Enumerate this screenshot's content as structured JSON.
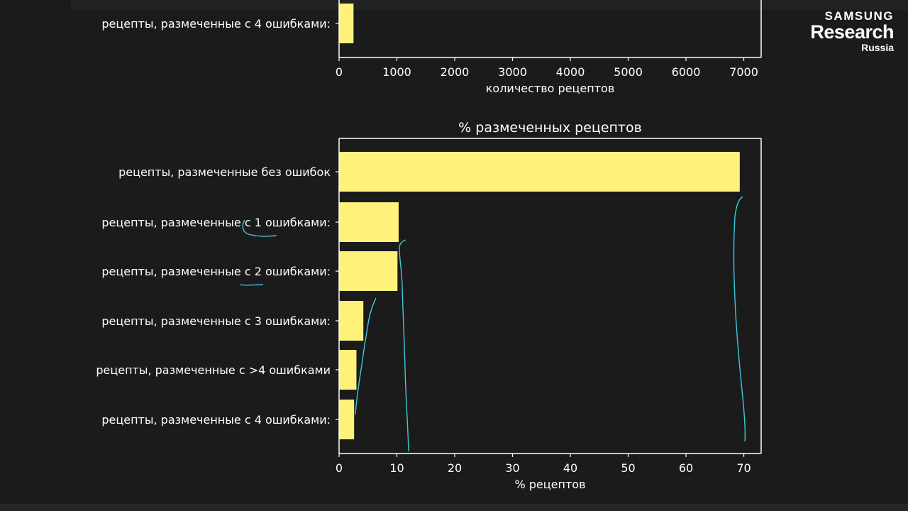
{
  "logo": {
    "line1": "SAMSUNG",
    "line2": "Research",
    "line3": "Russia"
  },
  "chart_data": [
    {
      "type": "bar",
      "orientation": "horizontal",
      "partial": true,
      "title": "",
      "xlabel": "количество рецептов",
      "xlim": [
        0,
        7300
      ],
      "xticks": [
        0,
        1000,
        2000,
        3000,
        4000,
        5000,
        6000,
        7000
      ],
      "categories": [
        "рецепты, размеченные с 4 ошибками:"
      ],
      "values": [
        250
      ],
      "color": "#fff27a"
    },
    {
      "type": "bar",
      "orientation": "horizontal",
      "title": "% размеченных рецептов",
      "xlabel": "% рецептов",
      "xlim": [
        0,
        73
      ],
      "xticks": [
        0,
        10,
        20,
        30,
        40,
        50,
        60,
        70
      ],
      "categories": [
        "рецепты, размеченные без ошибок",
        "рецепты, размеченные с 1 ошибками:",
        "рецепты, размеченные с 2 ошибками:",
        "рецепты, размеченные с 3 ошибками:",
        "рецепты, размеченные с >4 ошибками",
        "рецепты, размеченные с 4 ошибками:"
      ],
      "values": [
        69.3,
        10.3,
        10.1,
        4.2,
        3.0,
        2.6
      ],
      "color": "#fff27a"
    }
  ]
}
